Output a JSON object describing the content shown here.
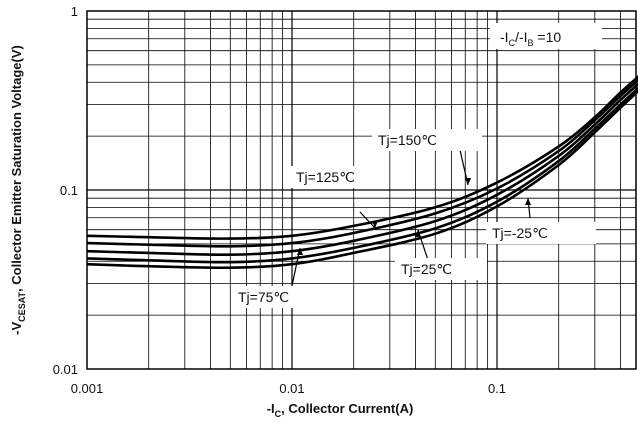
{
  "chart_data": {
    "type": "line",
    "x_scale": "log",
    "y_scale": "log",
    "xlim": [
      0.001,
      0.5
    ],
    "ylim": [
      0.01,
      1
    ],
    "grid": true,
    "xlabel": {
      "pre": "-I",
      "sub": "C",
      "post": ", Collector Current(A)"
    },
    "ylabel": {
      "pre": "-V",
      "sub": "CESAT",
      "post": ", Collector Emitter Saturation Voltage(V)"
    },
    "x_ticks": [
      {
        "value": 0.001,
        "label": "0.001"
      },
      {
        "value": 0.01,
        "label": "0.01"
      },
      {
        "value": 0.1,
        "label": "0.1"
      }
    ],
    "y_ticks": [
      {
        "value": 0.01,
        "label": "0.01"
      },
      {
        "value": 0.1,
        "label": "0.1"
      },
      {
        "value": 1,
        "label": "1"
      }
    ],
    "condition": {
      "p1": "-I",
      "s1": "C",
      "p2": "/-I",
      "s2": "B",
      "p3": " =10"
    },
    "series": [
      {
        "name": "Tj=-25℃",
        "x": [
          0.001,
          0.002,
          0.005,
          0.01,
          0.02,
          0.05,
          0.1,
          0.2,
          0.3,
          0.4,
          0.5
        ],
        "y": [
          0.0555,
          0.0545,
          0.0535,
          0.0555,
          0.063,
          0.08,
          0.11,
          0.175,
          0.255,
          0.35,
          0.44
        ]
      },
      {
        "name": "Tj=25℃",
        "x": [
          0.001,
          0.002,
          0.005,
          0.01,
          0.02,
          0.05,
          0.1,
          0.2,
          0.3,
          0.4,
          0.5
        ],
        "y": [
          0.0505,
          0.0495,
          0.0485,
          0.0505,
          0.0575,
          0.074,
          0.102,
          0.165,
          0.245,
          0.335,
          0.42
        ]
      },
      {
        "name": "Tj=75℃",
        "x": [
          0.001,
          0.002,
          0.005,
          0.01,
          0.02,
          0.05,
          0.1,
          0.2,
          0.3,
          0.4,
          0.5
        ],
        "y": [
          0.0455,
          0.0445,
          0.0435,
          0.0455,
          0.052,
          0.067,
          0.094,
          0.155,
          0.232,
          0.318,
          0.4
        ]
      },
      {
        "name": "Tj=125℃",
        "x": [
          0.001,
          0.002,
          0.005,
          0.01,
          0.02,
          0.05,
          0.1,
          0.2,
          0.3,
          0.4,
          0.5
        ],
        "y": [
          0.0415,
          0.0405,
          0.0395,
          0.0415,
          0.0475,
          0.061,
          0.086,
          0.145,
          0.22,
          0.3,
          0.38
        ]
      },
      {
        "name": "Tj=150℃",
        "x": [
          0.001,
          0.002,
          0.005,
          0.01,
          0.02,
          0.05,
          0.1,
          0.2,
          0.3,
          0.4,
          0.5
        ],
        "y": [
          0.0385,
          0.0375,
          0.0368,
          0.0385,
          0.0445,
          0.057,
          0.081,
          0.138,
          0.21,
          0.288,
          0.365
        ]
      }
    ]
  }
}
